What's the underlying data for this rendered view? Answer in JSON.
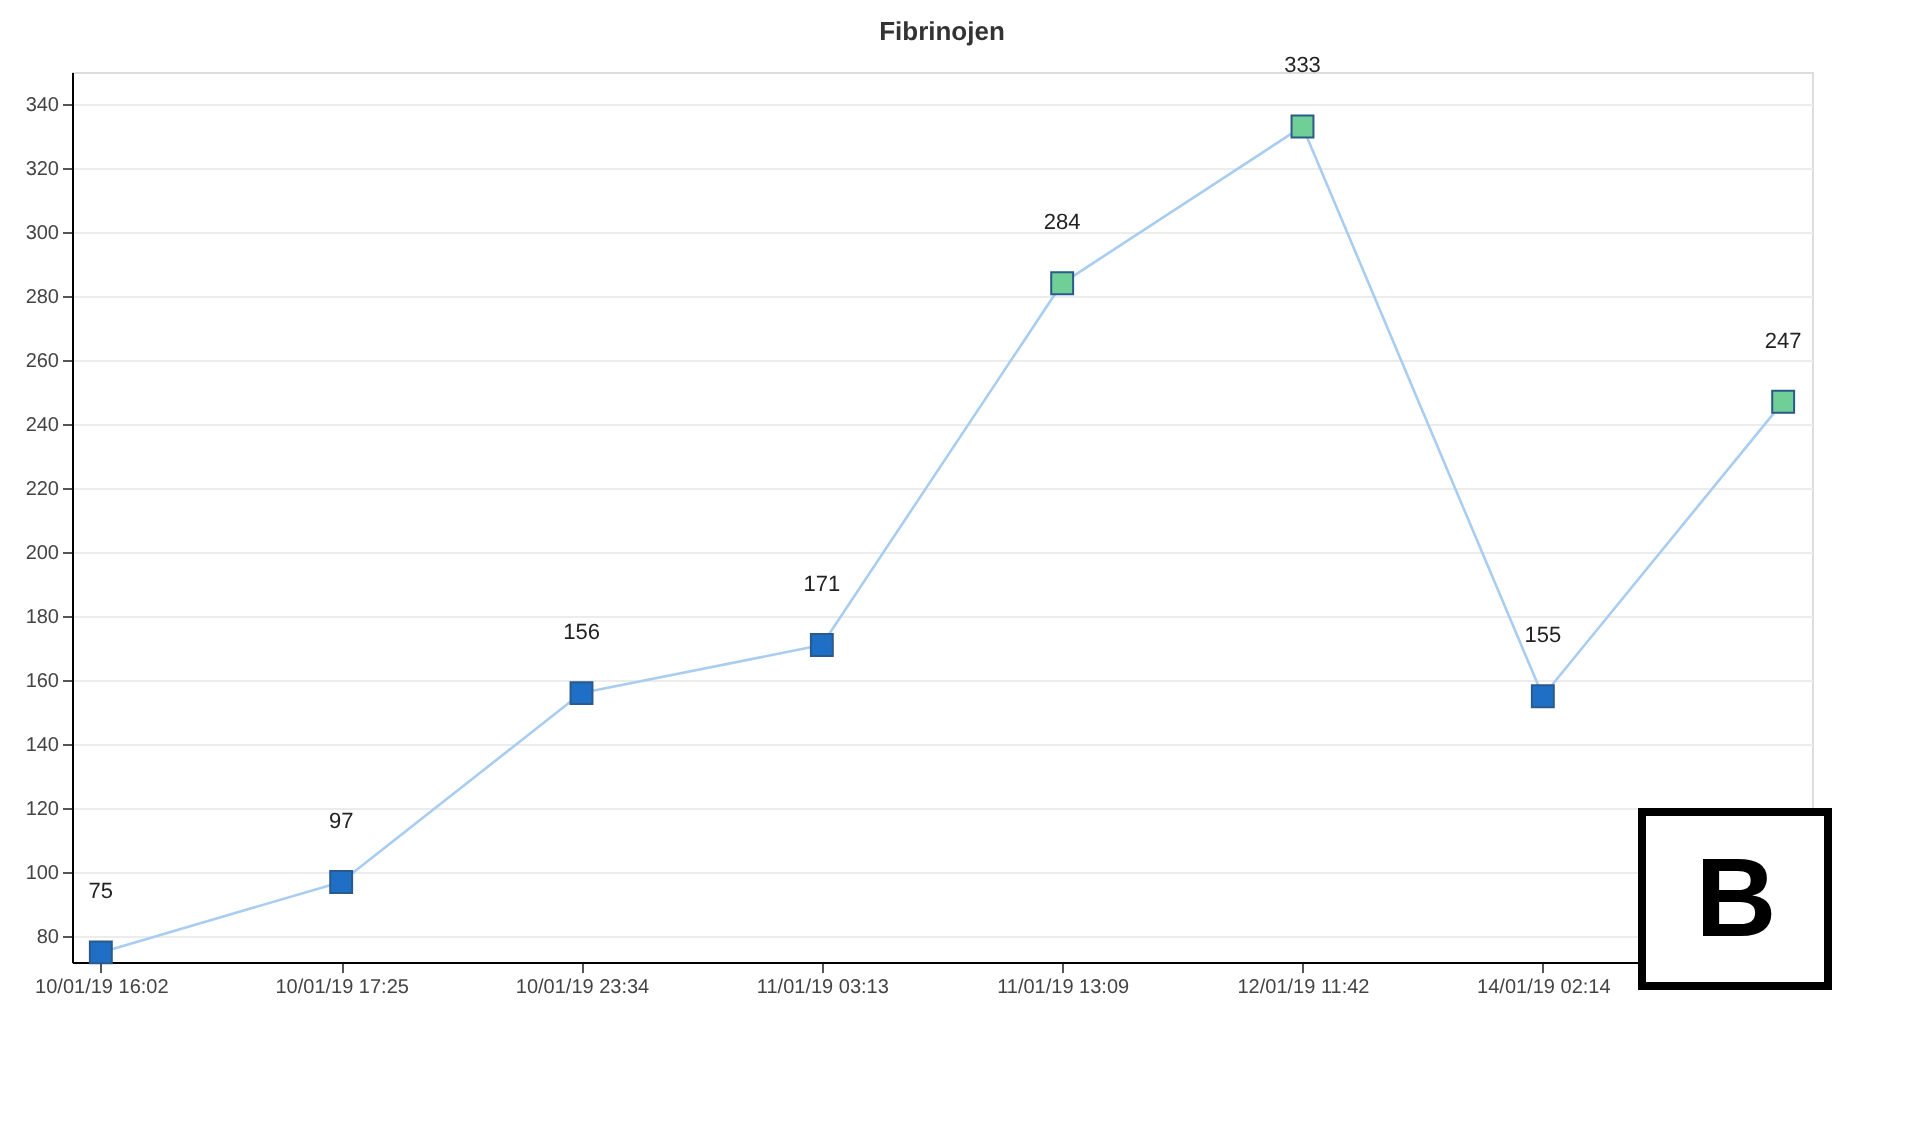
{
  "chart_data": {
    "type": "line",
    "title": "Fibrinojen",
    "categories": [
      "10/01/19 16:02",
      "10/01/19 17:25",
      "10/01/19 23:34",
      "11/01/19 03:13",
      "11/01/19 13:09",
      "12/01/19 11:42",
      "14/01/19 02:14",
      null
    ],
    "series": [
      {
        "color": "#a8cdf0",
        "values": [
          75,
          97,
          156,
          171,
          284,
          333,
          155,
          247
        ],
        "colors": [
          "#1f6fc7",
          "#1f6fc7",
          "#1f6fc7",
          "#1f6fc7",
          "#6fcf97",
          "#6fcf97",
          "#1f6fc7",
          "#6fcf97"
        ]
      }
    ],
    "ylim": [
      72,
      350
    ],
    "yticks": [
      80,
      100,
      120,
      140,
      160,
      180,
      200,
      220,
      240,
      260,
      280,
      300,
      320,
      340
    ],
    "grid": "y",
    "marker": "square",
    "line_style": "solid",
    "data_labels": true,
    "annotations": [
      "B"
    ]
  }
}
